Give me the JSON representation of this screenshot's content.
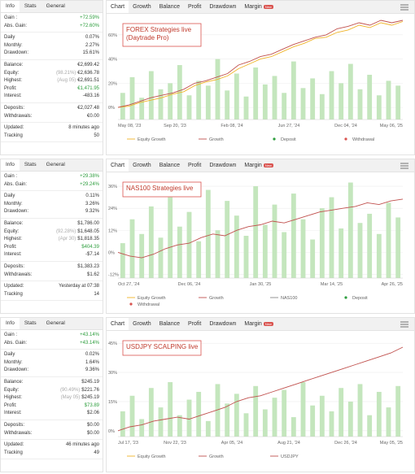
{
  "panels": [
    {
      "info_tabs": [
        "Info",
        "Stats",
        "General"
      ],
      "stat_groups": [
        [
          {
            "label": "Gain :",
            "value": "+72.59%",
            "color": "#2e9e3e"
          },
          {
            "label": "Abs. Gain:",
            "value": "+72.60%",
            "color": "#2e9e3e"
          }
        ],
        [
          {
            "label": "Daily",
            "value": "0.07%"
          },
          {
            "label": "Monthly:",
            "value": "2.27%"
          },
          {
            "label": "Drawdown:",
            "value": "15.61%"
          }
        ],
        [
          {
            "label": "Balance:",
            "value": "€2,699.42"
          },
          {
            "label": "Equity:",
            "note": "(98.21%)",
            "value": "€2,636.78"
          },
          {
            "label": "Highest:",
            "note": "(Aug 05)",
            "value": "€2,691.51"
          },
          {
            "label": "Profit:",
            "value": "€1,471.95",
            "color": "#2e9e3e"
          },
          {
            "label": "Interest:",
            "value": "-483.16"
          }
        ],
        [
          {
            "label": "Deposits:",
            "value": "€2,027.48"
          },
          {
            "label": "Withdrawals:",
            "value": "€0.00"
          }
        ],
        [
          {
            "label": "Updated:",
            "value": "8 minutes ago"
          },
          {
            "label": "Tracking",
            "value": "50"
          }
        ]
      ],
      "chart_tabs": [
        "Chart",
        "Growth",
        "Balance",
        "Profit",
        "Drawdown",
        "Margin"
      ],
      "badge": "New",
      "chart": {
        "type": "line",
        "title": "FOREX Strategies live\n(Daytrade Pro)",
        "ylim": [
          -10,
          72
        ],
        "yticks": [
          {
            "value": 0,
            "label": "0%"
          },
          {
            "value": 20,
            "label": "20%"
          },
          {
            "value": 40,
            "label": "40%"
          },
          {
            "value": 60,
            "label": "60%"
          }
        ],
        "xlabels": [
          "May 08, '23",
          "Sep 20, '23",
          "Feb 08, '24",
          "Jun 27, '24",
          "Dec 04, '24",
          "May 06, '25"
        ],
        "equity": [
          0,
          1,
          4,
          6,
          8,
          11,
          13,
          18,
          21,
          23,
          26,
          32,
          36,
          40,
          42,
          46,
          50,
          53,
          57,
          58,
          62,
          64,
          68,
          66,
          70,
          68,
          71
        ],
        "growth": [
          0,
          2,
          5,
          8,
          10,
          12,
          15,
          20,
          22,
          25,
          28,
          35,
          38,
          42,
          44,
          48,
          52,
          55,
          58,
          60,
          65,
          67,
          70,
          68,
          72,
          70,
          72
        ],
        "bars": [
          12,
          25,
          8,
          30,
          15,
          20,
          35,
          10,
          22,
          18,
          40,
          14,
          28,
          9,
          33,
          19,
          26,
          12,
          38,
          16,
          24,
          11,
          30,
          20,
          36,
          15,
          27,
          10,
          22,
          18
        ],
        "equity_color": "#f0b429",
        "growth_color": "#c0504d",
        "bar_color": "#c4e6bd",
        "legend": [
          {
            "name": "Equity Growth",
            "color": "#f0b429",
            "marker": "line"
          },
          {
            "name": "Growth",
            "color": "#c0504d",
            "marker": "line"
          },
          {
            "name": "Deposit",
            "color": "#2e9e3e",
            "marker": "dot"
          },
          {
            "name": "Withdrawal",
            "color": "#d9534f",
            "marker": "dot"
          }
        ]
      }
    },
    {
      "info_tabs": [
        "Info",
        "Stats",
        "General"
      ],
      "stat_groups": [
        [
          {
            "label": "Gain :",
            "value": "+29.38%",
            "color": "#2e9e3e"
          },
          {
            "label": "Abs. Gain:",
            "value": "+29.24%",
            "color": "#2e9e3e"
          }
        ],
        [
          {
            "label": "Daily",
            "value": "0.11%"
          },
          {
            "label": "Monthly:",
            "value": "3.26%"
          },
          {
            "label": "Drawdown:",
            "value": "9.32%"
          }
        ],
        [
          {
            "label": "Balance:",
            "value": "$1,786.00"
          },
          {
            "label": "Equity:",
            "note": "(92.28%)",
            "value": "$1,648.05"
          },
          {
            "label": "Highest:",
            "note": "(Apr 30)",
            "value": "$1,818.35"
          },
          {
            "label": "Profit:",
            "value": "$404.39",
            "color": "#2e9e3e"
          },
          {
            "label": "Interest:",
            "value": "-$7.14"
          }
        ],
        [
          {
            "label": "Deposits:",
            "value": "$1,383.23"
          },
          {
            "label": "Withdrawals:",
            "value": "$1.62"
          }
        ],
        [
          {
            "label": "Updated:",
            "value": "Yesterday at 07:38"
          },
          {
            "label": "Tracking",
            "value": "14"
          }
        ]
      ],
      "chart_tabs": [
        "Chart",
        "Growth",
        "Balance",
        "Profit",
        "Drawdown",
        "Margin"
      ],
      "badge": "New",
      "chart": {
        "type": "line",
        "title": "NAS100 Strategies live",
        "ylim": [
          -14,
          40
        ],
        "yticks": [
          {
            "value": -12,
            "label": "-12%"
          },
          {
            "value": 0,
            "label": "0%"
          },
          {
            "value": 12,
            "label": "12%"
          },
          {
            "value": 24,
            "label": "24%"
          },
          {
            "value": 36,
            "label": "36%"
          }
        ],
        "xlabels": [
          "Oct 27, '24",
          "Dec 06, '24",
          "Jan 30, '25",
          "Mar 14, '25",
          "Apr 26, '25"
        ],
        "growth": [
          0,
          -2,
          -3,
          -1,
          2,
          4,
          5,
          8,
          10,
          9,
          12,
          14,
          15,
          17,
          16,
          18,
          20,
          22,
          23,
          24,
          25,
          27,
          26,
          28,
          29
        ],
        "bars": [
          5,
          18,
          10,
          25,
          8,
          30,
          14,
          22,
          6,
          34,
          12,
          28,
          20,
          9,
          36,
          15,
          26,
          11,
          32,
          18,
          7,
          24,
          30,
          13,
          38,
          16,
          21,
          10,
          27,
          19
        ],
        "growth_color": "#c0504d",
        "bar_color": "#c4e6bd",
        "legend": [
          {
            "name": "Equity Growth",
            "color": "#f0b429",
            "marker": "line"
          },
          {
            "name": "Growth",
            "color": "#c0504d",
            "marker": "line"
          },
          {
            "name": "NAS100",
            "color": "#888888",
            "marker": "line"
          },
          {
            "name": "Deposit",
            "color": "#2e9e3e",
            "marker": "dot"
          },
          {
            "name": "Withdrawal",
            "color": "#d9534f",
            "marker": "dot"
          }
        ]
      }
    },
    {
      "info_tabs": [
        "Info",
        "Stats",
        "General"
      ],
      "stat_groups": [
        [
          {
            "label": "Gain :",
            "value": "+43.14%",
            "color": "#2e9e3e"
          },
          {
            "label": "Abs. Gain:",
            "value": "+43.14%",
            "color": "#2e9e3e"
          }
        ],
        [
          {
            "label": "Daily",
            "value": "0.02%"
          },
          {
            "label": "Monthly:",
            "value": "1.64%"
          },
          {
            "label": "Drawdown:",
            "value": "9.36%"
          }
        ],
        [
          {
            "label": "Balance:",
            "value": "$245.19"
          },
          {
            "label": "Equity:",
            "note": "(90.49%)",
            "value": "$221.76"
          },
          {
            "label": "Highest:",
            "note": "(May 05)",
            "value": "$245.19"
          },
          {
            "label": "Profit:",
            "value": "$73.89",
            "color": "#2e9e3e"
          },
          {
            "label": "Interest:",
            "value": "$2.06"
          }
        ],
        [
          {
            "label": "Deposits:",
            "value": "$0.00"
          },
          {
            "label": "Withdrawals:",
            "value": "$0.00"
          }
        ],
        [
          {
            "label": "Updated:",
            "value": "46 minutes ago"
          },
          {
            "label": "Tracking",
            "value": "49"
          }
        ]
      ],
      "chart_tabs": [
        "Chart",
        "Growth",
        "Balance",
        "Profit",
        "Drawdown",
        "Margin"
      ],
      "badge": "New",
      "chart": {
        "type": "line",
        "title": "USDJPY SCALPING live",
        "ylim": [
          -3,
          48
        ],
        "yticks": [
          {
            "value": 0,
            "label": "0%"
          },
          {
            "value": 15,
            "label": "15%"
          },
          {
            "value": 30,
            "label": "30%"
          },
          {
            "value": 45,
            "label": "45%"
          }
        ],
        "xlabels": [
          "Jul 17, '23",
          "Nov 22, '23",
          "Apr 05, '24",
          "Aug 21, '24",
          "Dec 26, '24",
          "May 05, '25"
        ],
        "growth": [
          0,
          2,
          3,
          5,
          6,
          7,
          6,
          8,
          10,
          12,
          15,
          17,
          18,
          20,
          22,
          24,
          26,
          28,
          30,
          32,
          34,
          36,
          38,
          40,
          43
        ],
        "bars": [
          10,
          18,
          6,
          22,
          12,
          25,
          8,
          16,
          20,
          5,
          24,
          14,
          19,
          9,
          23,
          11,
          17,
          21,
          7,
          25,
          13,
          18,
          10,
          22,
          15,
          24,
          8,
          20,
          12,
          23
        ],
        "growth_color": "#c0504d",
        "bar_color": "#c4e6bd",
        "legend": [
          {
            "name": "Equity Growth",
            "color": "#f0b429",
            "marker": "line"
          },
          {
            "name": "Growth",
            "color": "#c0504d",
            "marker": "line"
          },
          {
            "name": "USDJPY",
            "color": "#c0504d",
            "marker": "line"
          }
        ]
      }
    }
  ]
}
